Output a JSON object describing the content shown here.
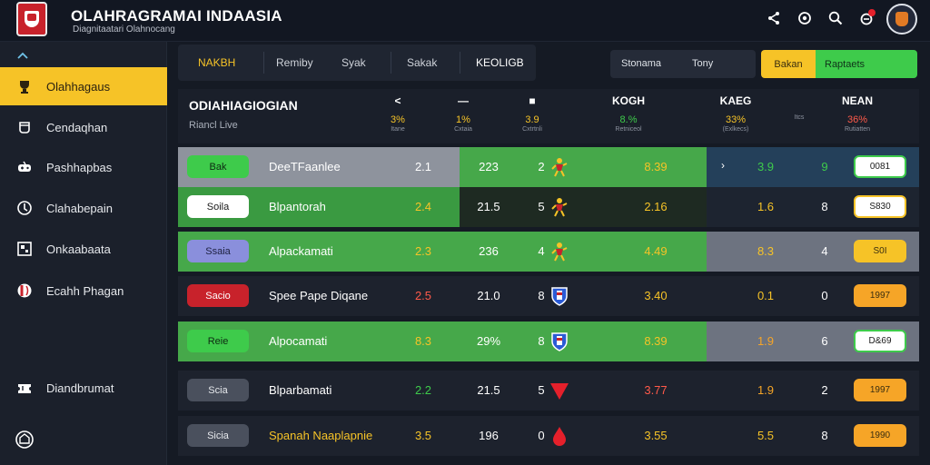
{
  "header": {
    "title": "OLAHRAGRAMAI INDAASIA",
    "subtitle": "Diagnitaatari Olahnocang"
  },
  "icons": [
    "share-icon",
    "target-icon",
    "search-icon",
    "notification-icon",
    "avatar"
  ],
  "sidebar": {
    "items": [
      {
        "label": "Olahhagaus",
        "icon": "trophy-icon",
        "active": true
      },
      {
        "label": "Cendaqhan",
        "icon": "cup-icon",
        "active": false
      },
      {
        "label": "Pashhapbas",
        "icon": "gamepad-icon",
        "active": false
      },
      {
        "label": "Clahabepain",
        "icon": "compass-icon",
        "active": false
      },
      {
        "label": "Onkaabaata",
        "icon": "grid-icon",
        "active": false
      },
      {
        "label": "Ecahh Phagan",
        "icon": "ball-icon",
        "active": false
      },
      {
        "label": "Diandbrumat",
        "icon": "ticket-icon",
        "active": false
      }
    ]
  },
  "toolbar": {
    "tabs": [
      "NAKBH",
      "Remiby",
      "Syak",
      "Sakak",
      "KEOLIGB"
    ],
    "filter_left": "Stonama",
    "filter_right": "Tony",
    "btn_yellow": "Bakan",
    "btn_green": "Raptaets"
  },
  "table": {
    "title": "ODIAHIAGIOGIAN",
    "subtitle": "Riancl Live",
    "columns": [
      {
        "icon": "<",
        "value": "3%",
        "sub": "Itane",
        "color": "#f6c327"
      },
      {
        "icon": "—",
        "value": "1%",
        "sub": "Cxtaia",
        "color": "#f6c327"
      },
      {
        "icon": "■",
        "value": "3.9",
        "sub": "Cxtrtnli",
        "color": "#f6c327"
      },
      {
        "icon": "KOGH",
        "value": "8.%",
        "sub": "Retniceol",
        "color": "#3ecb4b"
      },
      {
        "icon": "KAEG",
        "value": "33%",
        "sub": "(Exlkecs)",
        "color": "#f6c327"
      },
      {
        "icon": "",
        "value": "",
        "sub": "Itcs",
        "color": "#ffffff"
      },
      {
        "icon": "NEAN",
        "value": "36%",
        "sub": "Rutiatten",
        "color": "#ff5a4a"
      }
    ]
  },
  "rows": [
    {
      "pill": "Bak",
      "pill_bg": "#3ecb4b",
      "pill_fg": "#0d2a12",
      "name": "DeeTFaanlee",
      "v1": "2.1",
      "v2": "223",
      "rank": "2",
      "mark": "player",
      "v3": "8.39",
      "v4": "3.9",
      "v5": "9",
      "btn": "0081",
      "btn_bg": "#ffffff",
      "btn_fg": "#1a1a1a",
      "btn_border": "#3ecb4b",
      "v4_color": "#3ecb4b",
      "v5_color": "#3ecb4b"
    },
    {
      "pill": "Soila",
      "pill_bg": "#ffffff",
      "pill_fg": "#1a1a1a",
      "name": "Blpantorah",
      "v1": "2.4",
      "v2": "21.5",
      "rank": "5",
      "mark": "player",
      "v3": "2.16",
      "v4": "1.6",
      "v5": "8",
      "btn": "S830",
      "btn_bg": "#ffffff",
      "btn_fg": "#1a1a1a",
      "btn_border": "#f6c327",
      "v4_color": "#f6c327",
      "v5_color": "#ffffff"
    },
    {
      "pill": "Ssaia",
      "pill_bg": "#8a8fdc",
      "pill_fg": "#1d2040",
      "name": "Alpackamati",
      "v1": "2.3",
      "v2": "236",
      "rank": "4",
      "mark": "player",
      "v3": "4.49",
      "v4": "8.3",
      "v5": "4",
      "btn": "S0I",
      "btn_bg": "#f6c327",
      "btn_fg": "#3a2e10",
      "btn_border": "#f6c327",
      "v4_color": "#f6c327",
      "v5_color": "#ffffff"
    },
    {
      "pill": "Sacio",
      "pill_bg": "#c8222b",
      "pill_fg": "#ffffff",
      "name": "Spee Pape Diqane",
      "v1": "2.5",
      "v2": "21.0",
      "rank": "8",
      "mark": "shield",
      "v3": "3.40",
      "v4": "0.1",
      "v5": "0",
      "btn": "1997",
      "btn_bg": "#f6a527",
      "btn_fg": "#3a2e10",
      "btn_border": "#f6a527",
      "v4_color": "#f6c327",
      "v5_color": "#ffffff"
    },
    {
      "pill": "Reie",
      "pill_bg": "#3ecb4b",
      "pill_fg": "#0d2a12",
      "name": "Alpocamati",
      "v1": "8.3",
      "v2": "29%",
      "rank": "8",
      "mark": "shield",
      "v3": "8.39",
      "v4": "1.9",
      "v5": "6",
      "btn": "D&69",
      "btn_bg": "#ffffff",
      "btn_fg": "#1a1a1a",
      "btn_border": "#3ecb4b",
      "v4_color": "#f6a527",
      "v5_color": "#ffffff"
    },
    {
      "pill": "Scia",
      "pill_bg": "#4a505d",
      "pill_fg": "#e6e8ec",
      "name": "Blparbamati",
      "v1": "2.2",
      "v2": "21.5",
      "rank": "5",
      "mark": "triangle",
      "v3": "3.77",
      "v4": "1.9",
      "v5": "2",
      "btn": "1997",
      "btn_bg": "#f6a527",
      "btn_fg": "#3a2e10",
      "btn_border": "#f6a527",
      "v4_color": "#f6a527",
      "v5_color": "#ffffff"
    },
    {
      "pill": "Sicia",
      "pill_bg": "#4a505d",
      "pill_fg": "#e6e8ec",
      "name": "Spanah Naaplapnie",
      "v1": "3.5",
      "v2": "196",
      "rank": "0",
      "mark": "drop",
      "v3": "3.55",
      "v4": "5.5",
      "v5": "8",
      "btn": "1990",
      "btn_bg": "#f6a527",
      "btn_fg": "#3a2e10",
      "btn_border": "#f6a527",
      "v4_color": "#f6c327",
      "v5_color": "#ffffff"
    }
  ],
  "colors": {
    "accent_yellow": "#f6c327",
    "accent_green": "#3ecb4b",
    "accent_red": "#c8222b",
    "bg": "#151a24"
  }
}
